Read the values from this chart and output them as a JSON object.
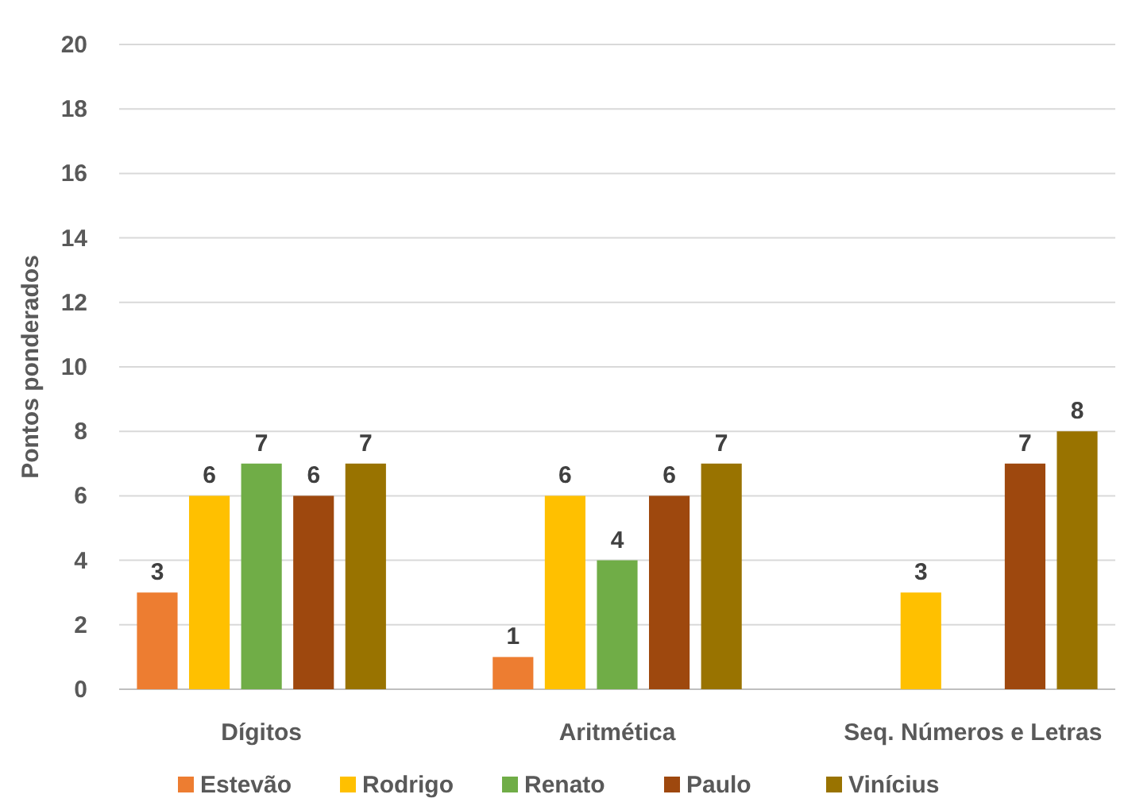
{
  "chart_data": {
    "type": "bar",
    "ylabel": "Pontos ponderados",
    "categories": [
      "Dígitos",
      "Aritmética",
      "Seq. Números e Letras"
    ],
    "series": [
      {
        "name": "Estevão",
        "color": "#ed7d31",
        "values": [
          3,
          1,
          null
        ]
      },
      {
        "name": "Rodrigo",
        "color": "#ffc000",
        "values": [
          6,
          6,
          3
        ]
      },
      {
        "name": "Renato",
        "color": "#70ad47",
        "values": [
          7,
          4,
          null
        ]
      },
      {
        "name": "Paulo",
        "color": "#9e480e",
        "values": [
          6,
          6,
          7
        ]
      },
      {
        "name": "Vinícius",
        "color": "#997300",
        "values": [
          7,
          7,
          8
        ]
      }
    ],
    "ylim": [
      0,
      20
    ],
    "yticks": [
      0,
      2,
      4,
      6,
      8,
      10,
      12,
      14,
      16,
      18,
      20
    ],
    "grid": "y",
    "legend": "bottom",
    "data_labels": true
  }
}
